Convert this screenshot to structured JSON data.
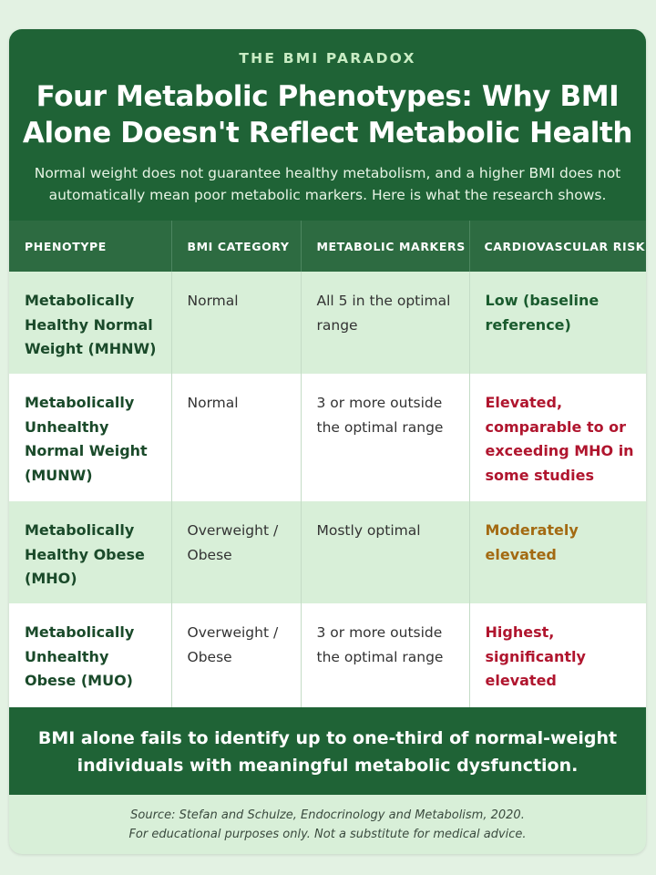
{
  "header": {
    "kicker": "THE BMI PARADOX",
    "title_line1": "Four Metabolic Phenotypes: Why BMI",
    "title_line2": "Alone Doesn't Reflect Metabolic Health",
    "subtitle": "Normal weight does not guarantee healthy metabolism, and a higher BMI does not automatically mean poor metabolic markers. Here is what the research shows."
  },
  "table": {
    "columns": [
      "PHENOTYPE",
      "BMI CATEGORY",
      "METABOLIC MARKERS",
      "CARDIOVASCULAR RISK"
    ],
    "rows": [
      {
        "phenotype": "Metabolically Healthy Normal Weight (MHNW)",
        "bmi": "Normal",
        "markers": "All 5 in the optimal range",
        "risk": "Low (baseline reference)",
        "risk_level": "low"
      },
      {
        "phenotype": "Metabolically Unhealthy Normal Weight (MUNW)",
        "bmi": "Normal",
        "markers": "3 or more outside the optimal range",
        "risk": "Elevated, comparable to or exceeding MHO in some studies",
        "risk_level": "elevated"
      },
      {
        "phenotype": "Metabolically Healthy Obese (MHO)",
        "bmi": "Overweight / Obese",
        "markers": "Mostly optimal",
        "risk": "Moderately elevated",
        "risk_level": "moderate"
      },
      {
        "phenotype": "Metabolically Unhealthy Obese (MUO)",
        "bmi": "Overweight / Obese",
        "markers": "3 or more outside the optimal range",
        "risk": "Highest, significantly elevated",
        "risk_level": "elevated"
      }
    ]
  },
  "banner": {
    "line1": "BMI alone fails to identify up to one-third of normal-weight",
    "line2": "individuals with meaningful metabolic dysfunction."
  },
  "footer": {
    "source": "Source: Stefan and Schulze, Endocrinology and Metabolism, 2020.",
    "disclaimer": "For educational purposes only. Not a substitute for medical advice."
  },
  "colors": {
    "header_green": "#1f6336",
    "table_header_green": "#2d6b41",
    "row_shaded": "#d8efd8",
    "risk_low": "#1a5b2e",
    "risk_elevated": "#b0152e",
    "risk_moderate": "#a36a12"
  }
}
